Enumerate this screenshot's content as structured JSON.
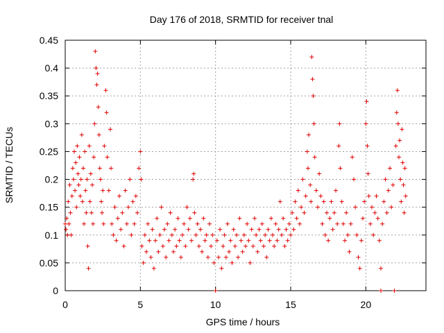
{
  "chart_data": {
    "type": "scatter",
    "title": "Day 176 of 2018, SRMTID for receiver tnal",
    "xlabel": "GPS time / hours",
    "ylabel": "SRMTID / TECUs",
    "xlim": [
      0,
      24
    ],
    "ylim": [
      0,
      0.45
    ],
    "xticks": [
      0,
      5,
      10,
      15,
      20
    ],
    "xtick_labels": [
      "0",
      "5",
      "10",
      "15",
      "20"
    ],
    "yticks": [
      0,
      0.05,
      0.1,
      0.15,
      0.2,
      0.25,
      0.3,
      0.35,
      0.4,
      0.45
    ],
    "ytick_labels": [
      "0",
      "0.05",
      "0.1",
      "0.15",
      "0.2",
      "0.25",
      "0.3",
      "0.35",
      "0.4",
      "0.45"
    ],
    "grid": true,
    "marker": "plus",
    "marker_color": "#e00000",
    "series": [
      {
        "name": "SRMTID",
        "points": [
          [
            0.0,
            0.12
          ],
          [
            0.05,
            0.11
          ],
          [
            0.1,
            0.13
          ],
          [
            0.15,
            0.1
          ],
          [
            0.2,
            0.16
          ],
          [
            0.25,
            0.12
          ],
          [
            0.3,
            0.19
          ],
          [
            0.35,
            0.14
          ],
          [
            0.4,
            0.1
          ],
          [
            0.45,
            0.17
          ],
          [
            0.5,
            0.22
          ],
          [
            0.55,
            0.2
          ],
          [
            0.6,
            0.25
          ],
          [
            0.65,
            0.18
          ],
          [
            0.7,
            0.23
          ],
          [
            0.75,
            0.15
          ],
          [
            0.8,
            0.26
          ],
          [
            0.85,
            0.21
          ],
          [
            0.9,
            0.19
          ],
          [
            0.95,
            0.24
          ],
          [
            1.0,
            0.17
          ],
          [
            1.05,
            0.2
          ],
          [
            1.1,
            0.28
          ],
          [
            1.15,
            0.16
          ],
          [
            1.2,
            0.22
          ],
          [
            1.25,
            0.12
          ],
          [
            1.3,
            0.25
          ],
          [
            1.35,
            0.18
          ],
          [
            1.4,
            0.14
          ],
          [
            1.45,
            0.2
          ],
          [
            1.5,
            0.08
          ],
          [
            1.55,
            0.04
          ],
          [
            1.6,
            0.26
          ],
          [
            1.65,
            0.16
          ],
          [
            1.7,
            0.21
          ],
          [
            1.75,
            0.14
          ],
          [
            1.8,
            0.19
          ],
          [
            1.85,
            0.12
          ],
          [
            1.9,
            0.24
          ],
          [
            1.95,
            0.3
          ],
          [
            2.0,
            0.43
          ],
          [
            2.05,
            0.4
          ],
          [
            2.1,
            0.37
          ],
          [
            2.15,
            0.39
          ],
          [
            2.2,
            0.33
          ],
          [
            2.25,
            0.28
          ],
          [
            2.3,
            0.22
          ],
          [
            2.35,
            0.2
          ],
          [
            2.4,
            0.16
          ],
          [
            2.45,
            0.14
          ],
          [
            2.5,
            0.18
          ],
          [
            2.55,
            0.12
          ],
          [
            2.6,
            0.26
          ],
          [
            2.7,
            0.36
          ],
          [
            2.75,
            0.32
          ],
          [
            2.8,
            0.24
          ],
          [
            2.9,
            0.18
          ],
          [
            3.0,
            0.29
          ],
          [
            3.05,
            0.22
          ],
          [
            3.1,
            0.12
          ],
          [
            3.2,
            0.1
          ],
          [
            3.3,
            0.15
          ],
          [
            3.4,
            0.09
          ],
          [
            3.5,
            0.13
          ],
          [
            3.6,
            0.17
          ],
          [
            3.7,
            0.11
          ],
          [
            3.8,
            0.14
          ],
          [
            3.9,
            0.08
          ],
          [
            4.0,
            0.18
          ],
          [
            4.1,
            0.12
          ],
          [
            4.2,
            0.15
          ],
          [
            4.3,
            0.2
          ],
          [
            4.4,
            0.1
          ],
          [
            4.5,
            0.16
          ],
          [
            4.6,
            0.12
          ],
          [
            4.7,
            0.17
          ],
          [
            4.8,
            0.14
          ],
          [
            4.9,
            0.22
          ],
          [
            5.0,
            0.25
          ],
          [
            5.05,
            0.2
          ],
          [
            5.1,
            0.08
          ],
          [
            5.2,
            0.05
          ],
          [
            5.3,
            0.1
          ],
          [
            5.4,
            0.07
          ],
          [
            5.5,
            0.12
          ],
          [
            5.6,
            0.09
          ],
          [
            5.7,
            0.06
          ],
          [
            5.8,
            0.11
          ],
          [
            5.9,
            0.04
          ],
          [
            6.0,
            0.09
          ],
          [
            6.1,
            0.13
          ],
          [
            6.2,
            0.07
          ],
          [
            6.3,
            0.1
          ],
          [
            6.4,
            0.15
          ],
          [
            6.5,
            0.08
          ],
          [
            6.6,
            0.11
          ],
          [
            6.7,
            0.06
          ],
          [
            6.8,
            0.12
          ],
          [
            6.9,
            0.09
          ],
          [
            7.0,
            0.14
          ],
          [
            7.1,
            0.1
          ],
          [
            7.2,
            0.07
          ],
          [
            7.3,
            0.11
          ],
          [
            7.4,
            0.08
          ],
          [
            7.5,
            0.13
          ],
          [
            7.6,
            0.09
          ],
          [
            7.7,
            0.06
          ],
          [
            7.8,
            0.1
          ],
          [
            7.9,
            0.12
          ],
          [
            8.0,
            0.08
          ],
          [
            8.1,
            0.15
          ],
          [
            8.2,
            0.11
          ],
          [
            8.3,
            0.13
          ],
          [
            8.4,
            0.09
          ],
          [
            8.5,
            0.2
          ],
          [
            8.55,
            0.21
          ],
          [
            8.6,
            0.14
          ],
          [
            8.7,
            0.1
          ],
          [
            8.8,
            0.12
          ],
          [
            8.9,
            0.08
          ],
          [
            9.0,
            0.11
          ],
          [
            9.1,
            0.07
          ],
          [
            9.2,
            0.13
          ],
          [
            9.3,
            0.09
          ],
          [
            9.4,
            0.1
          ],
          [
            9.5,
            0.06
          ],
          [
            9.6,
            0.12
          ],
          [
            9.7,
            0.08
          ],
          [
            9.8,
            0.1
          ],
          [
            9.9,
            0.05
          ],
          [
            10.0,
            0.0
          ],
          [
            10.1,
            0.09
          ],
          [
            10.2,
            0.06
          ],
          [
            10.3,
            0.11
          ],
          [
            10.4,
            0.04
          ],
          [
            10.5,
            0.08
          ],
          [
            10.6,
            0.1
          ],
          [
            10.7,
            0.06
          ],
          [
            10.8,
            0.12
          ],
          [
            10.9,
            0.07
          ],
          [
            11.0,
            0.09
          ],
          [
            11.1,
            0.05
          ],
          [
            11.2,
            0.11
          ],
          [
            11.3,
            0.08
          ],
          [
            11.4,
            0.1
          ],
          [
            11.5,
            0.06
          ],
          [
            11.6,
            0.13
          ],
          [
            11.7,
            0.09
          ],
          [
            11.8,
            0.07
          ],
          [
            11.9,
            0.1
          ],
          [
            12.0,
            0.08
          ],
          [
            12.1,
            0.12
          ],
          [
            12.2,
            0.09
          ],
          [
            12.3,
            0.05
          ],
          [
            12.4,
            0.11
          ],
          [
            12.5,
            0.08
          ],
          [
            12.6,
            0.13
          ],
          [
            12.7,
            0.1
          ],
          [
            12.8,
            0.07
          ],
          [
            12.9,
            0.11
          ],
          [
            13.0,
            0.09
          ],
          [
            13.1,
            0.12
          ],
          [
            13.2,
            0.08
          ],
          [
            13.3,
            0.1
          ],
          [
            13.4,
            0.06
          ],
          [
            13.5,
            0.11
          ],
          [
            13.6,
            0.09
          ],
          [
            13.7,
            0.13
          ],
          [
            13.8,
            0.1
          ],
          [
            13.9,
            0.08
          ],
          [
            14.0,
            0.12
          ],
          [
            14.1,
            0.09
          ],
          [
            14.2,
            0.11
          ],
          [
            14.3,
            0.16
          ],
          [
            14.4,
            0.1
          ],
          [
            14.5,
            0.13
          ],
          [
            14.6,
            0.08
          ],
          [
            14.7,
            0.11
          ],
          [
            14.8,
            0.09
          ],
          [
            14.9,
            0.12
          ],
          [
            15.0,
            0.1
          ],
          [
            15.1,
            0.14
          ],
          [
            15.2,
            0.11
          ],
          [
            15.3,
            0.16
          ],
          [
            15.4,
            0.13
          ],
          [
            15.5,
            0.18
          ],
          [
            15.6,
            0.12
          ],
          [
            15.7,
            0.15
          ],
          [
            15.8,
            0.2
          ],
          [
            15.9,
            0.14
          ],
          [
            16.0,
            0.17
          ],
          [
            16.1,
            0.25
          ],
          [
            16.15,
            0.22
          ],
          [
            16.2,
            0.28
          ],
          [
            16.3,
            0.19
          ],
          [
            16.35,
            0.16
          ],
          [
            16.4,
            0.42
          ],
          [
            16.45,
            0.38
          ],
          [
            16.5,
            0.35
          ],
          [
            16.55,
            0.3
          ],
          [
            16.6,
            0.24
          ],
          [
            16.7,
            0.18
          ],
          [
            16.8,
            0.15
          ],
          [
            16.9,
            0.21
          ],
          [
            17.0,
            0.17
          ],
          [
            17.1,
            0.12
          ],
          [
            17.2,
            0.16
          ],
          [
            17.3,
            0.1
          ],
          [
            17.4,
            0.14
          ],
          [
            17.5,
            0.09
          ],
          [
            17.6,
            0.13
          ],
          [
            17.7,
            0.16
          ],
          [
            17.8,
            0.11
          ],
          [
            17.9,
            0.14
          ],
          [
            18.0,
            0.18
          ],
          [
            18.1,
            0.12
          ],
          [
            18.2,
            0.26
          ],
          [
            18.25,
            0.3
          ],
          [
            18.3,
            0.22
          ],
          [
            18.4,
            0.16
          ],
          [
            18.5,
            0.12
          ],
          [
            18.6,
            0.09
          ],
          [
            18.7,
            0.14
          ],
          [
            18.8,
            0.1
          ],
          [
            18.9,
            0.07
          ],
          [
            19.0,
            0.12
          ],
          [
            19.1,
            0.24
          ],
          [
            19.2,
            0.2
          ],
          [
            19.3,
            0.15
          ],
          [
            19.4,
            0.1
          ],
          [
            19.5,
            0.06
          ],
          [
            19.6,
            0.04
          ],
          [
            19.7,
            0.09
          ],
          [
            19.8,
            0.13
          ],
          [
            19.9,
            0.16
          ],
          [
            20.0,
            0.3
          ],
          [
            20.05,
            0.34
          ],
          [
            20.1,
            0.26
          ],
          [
            20.15,
            0.21
          ],
          [
            20.2,
            0.17
          ],
          [
            20.3,
            0.12
          ],
          [
            20.4,
            0.15
          ],
          [
            20.5,
            0.1
          ],
          [
            20.6,
            0.14
          ],
          [
            20.7,
            0.17
          ],
          [
            20.8,
            0.13
          ],
          [
            20.9,
            0.09
          ],
          [
            21.0,
            0.04
          ],
          [
            21.0,
            0.0
          ],
          [
            21.1,
            0.12
          ],
          [
            21.2,
            0.16
          ],
          [
            21.3,
            0.2
          ],
          [
            21.4,
            0.14
          ],
          [
            21.5,
            0.18
          ],
          [
            21.6,
            0.22
          ],
          [
            21.7,
            0.15
          ],
          [
            21.8,
            0.19
          ],
          [
            21.9,
            0.0
          ],
          [
            22.0,
            0.26
          ],
          [
            22.05,
            0.32
          ],
          [
            22.1,
            0.36
          ],
          [
            22.15,
            0.3
          ],
          [
            22.2,
            0.24
          ],
          [
            22.25,
            0.27
          ],
          [
            22.3,
            0.2
          ],
          [
            22.35,
            0.16
          ],
          [
            22.4,
            0.29
          ],
          [
            22.45,
            0.23
          ],
          [
            22.5,
            0.19
          ],
          [
            22.55,
            0.14
          ],
          [
            22.6,
            0.22
          ],
          [
            22.65,
            0.17
          ]
        ]
      }
    ]
  }
}
